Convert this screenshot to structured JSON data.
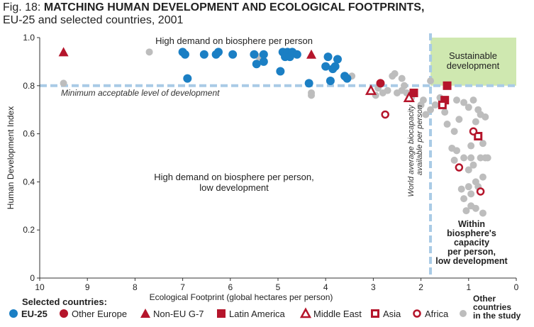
{
  "figure": {
    "number_label": "Fig. 18:",
    "title": "MATCHING HUMAN DEVELOPMENT AND ECOLOGICAL FOOTPRINTS,",
    "subtitle": "EU-25 and selected countries, 2001"
  },
  "colors": {
    "eu25": "#1b7fc4",
    "other_europe": "#b5152b",
    "non_eu_g7": "#b5152b",
    "latin_america": "#b5152b",
    "middle_east": "#b5152b",
    "asia": "#b5152b",
    "africa": "#b5152b",
    "other": "#bdbdbd",
    "sustainable_box": "#cfe8b0",
    "dashed_lines": "#a9cbe6"
  },
  "chart_data": {
    "type": "scatter",
    "xlabel": "Ecological Footprint (global hectares per person)",
    "ylabel": "Human Development Index",
    "xlim": [
      10,
      0
    ],
    "ylim": [
      0,
      1.0
    ],
    "x_reversed": true,
    "x_ticks": [
      10,
      9,
      8,
      7,
      6,
      5,
      4,
      3,
      2,
      1,
      0
    ],
    "y_ticks": [
      0,
      0.2,
      0.4,
      0.6,
      0.8,
      1.0
    ],
    "x_tick_labels": [
      "10",
      "9",
      "8",
      "7",
      "6",
      "5",
      "4",
      "3",
      "2",
      "1",
      "0"
    ],
    "y_tick_labels": [
      "0",
      "0.2",
      "0.4",
      "0.6",
      "0.8",
      "1.0"
    ],
    "grid": false,
    "legend_placement": "bottom",
    "legend_title": "Selected countries:",
    "reference_lines": {
      "hdi_threshold": 0.8,
      "hdi_label": "Minimum acceptable level of development",
      "biocapacity": 1.8,
      "biocapacity_label": [
        "World average biocapacity",
        "available per person"
      ]
    },
    "regions": {
      "top_left": "High demand on biosphere per person",
      "middle_left": [
        "High demand on biosphere per person,",
        "low development"
      ],
      "top_right": [
        "Sustainable",
        "development"
      ],
      "bottom_right": [
        "Within",
        "biosphere's",
        "capacity",
        "per person,",
        "low development"
      ]
    },
    "series": [
      {
        "name": "EU-25",
        "marker": "circle",
        "color": "#1b7fc4",
        "points": [
          [
            7.0,
            0.94
          ],
          [
            6.95,
            0.93
          ],
          [
            6.9,
            0.83
          ],
          [
            6.55,
            0.93
          ],
          [
            6.3,
            0.93
          ],
          [
            6.25,
            0.94
          ],
          [
            5.95,
            0.93
          ],
          [
            5.5,
            0.93
          ],
          [
            5.45,
            0.89
          ],
          [
            5.3,
            0.9
          ],
          [
            5.3,
            0.93
          ],
          [
            4.95,
            0.86
          ],
          [
            4.9,
            0.94
          ],
          [
            4.85,
            0.92
          ],
          [
            4.8,
            0.94
          ],
          [
            4.75,
            0.92
          ],
          [
            4.7,
            0.94
          ],
          [
            4.6,
            0.93
          ],
          [
            4.35,
            0.81
          ],
          [
            4.0,
            0.88
          ],
          [
            3.95,
            0.92
          ],
          [
            3.9,
            0.82
          ],
          [
            3.85,
            0.87
          ],
          [
            3.8,
            0.88
          ],
          [
            3.75,
            0.91
          ],
          [
            3.6,
            0.84
          ],
          [
            3.55,
            0.83
          ]
        ]
      },
      {
        "name": "Other Europe",
        "marker": "circle",
        "color": "#b5152b",
        "points": [
          [
            2.85,
            0.81
          ]
        ]
      },
      {
        "name": "Non-EU G-7",
        "marker": "triangle",
        "color": "#b5152b",
        "points": [
          [
            9.5,
            0.94
          ],
          [
            4.3,
            0.93
          ]
        ]
      },
      {
        "name": "Latin America",
        "marker": "square",
        "color": "#b5152b",
        "points": [
          [
            2.15,
            0.77
          ],
          [
            1.45,
            0.8
          ],
          [
            1.5,
            0.74
          ]
        ]
      },
      {
        "name": "Middle East",
        "marker": "triangle-open",
        "color": "#b5152b",
        "points": [
          [
            3.05,
            0.78
          ],
          [
            2.25,
            0.75
          ]
        ]
      },
      {
        "name": "Asia",
        "marker": "square-open",
        "color": "#b5152b",
        "points": [
          [
            1.55,
            0.72
          ],
          [
            0.8,
            0.59
          ]
        ]
      },
      {
        "name": "Africa",
        "marker": "circle-open",
        "color": "#b5152b",
        "points": [
          [
            2.75,
            0.68
          ],
          [
            0.9,
            0.61
          ],
          [
            1.2,
            0.46
          ],
          [
            0.75,
            0.36
          ]
        ]
      },
      {
        "name": "Other countries in the study",
        "marker": "circle",
        "color": "#bdbdbd",
        "points": [
          [
            9.5,
            0.81
          ],
          [
            7.7,
            0.94
          ],
          [
            5.4,
            0.92
          ],
          [
            4.3,
            0.77
          ],
          [
            4.3,
            0.76
          ],
          [
            3.45,
            0.84
          ],
          [
            2.95,
            0.76
          ],
          [
            2.9,
            0.79
          ],
          [
            2.8,
            0.77
          ],
          [
            2.7,
            0.78
          ],
          [
            2.6,
            0.84
          ],
          [
            2.55,
            0.85
          ],
          [
            2.5,
            0.77
          ],
          [
            2.4,
            0.83
          ],
          [
            2.4,
            0.78
          ],
          [
            2.35,
            0.8
          ],
          [
            2.3,
            0.77
          ],
          [
            2.2,
            0.75
          ],
          [
            2.0,
            0.72
          ],
          [
            1.95,
            0.74
          ],
          [
            1.9,
            0.68
          ],
          [
            1.8,
            0.7
          ],
          [
            1.8,
            0.82
          ],
          [
            1.7,
            0.72
          ],
          [
            1.6,
            0.75
          ],
          [
            1.5,
            0.69
          ],
          [
            1.45,
            0.64
          ],
          [
            1.3,
            0.61
          ],
          [
            1.25,
            0.74
          ],
          [
            1.2,
            0.66
          ],
          [
            1.1,
            0.73
          ],
          [
            1.0,
            0.71
          ],
          [
            0.95,
            0.55
          ],
          [
            0.9,
            0.74
          ],
          [
            0.85,
            0.65
          ],
          [
            0.8,
            0.7
          ],
          [
            0.75,
            0.68
          ],
          [
            0.7,
            0.56
          ],
          [
            0.65,
            0.67
          ],
          [
            1.35,
            0.54
          ],
          [
            1.3,
            0.49
          ],
          [
            1.25,
            0.53
          ],
          [
            1.1,
            0.5
          ],
          [
            1.0,
            0.45
          ],
          [
            0.95,
            0.5
          ],
          [
            0.9,
            0.47
          ],
          [
            0.85,
            0.4
          ],
          [
            0.8,
            0.38
          ],
          [
            0.75,
            0.5
          ],
          [
            0.7,
            0.42
          ],
          [
            0.6,
            0.5
          ],
          [
            1.15,
            0.37
          ],
          [
            1.1,
            0.33
          ],
          [
            1.0,
            0.38
          ],
          [
            0.95,
            0.35
          ],
          [
            1.05,
            0.28
          ],
          [
            0.95,
            0.3
          ],
          [
            0.85,
            0.29
          ],
          [
            0.7,
            0.27
          ],
          [
            0.65,
            0.5
          ]
        ]
      }
    ]
  }
}
